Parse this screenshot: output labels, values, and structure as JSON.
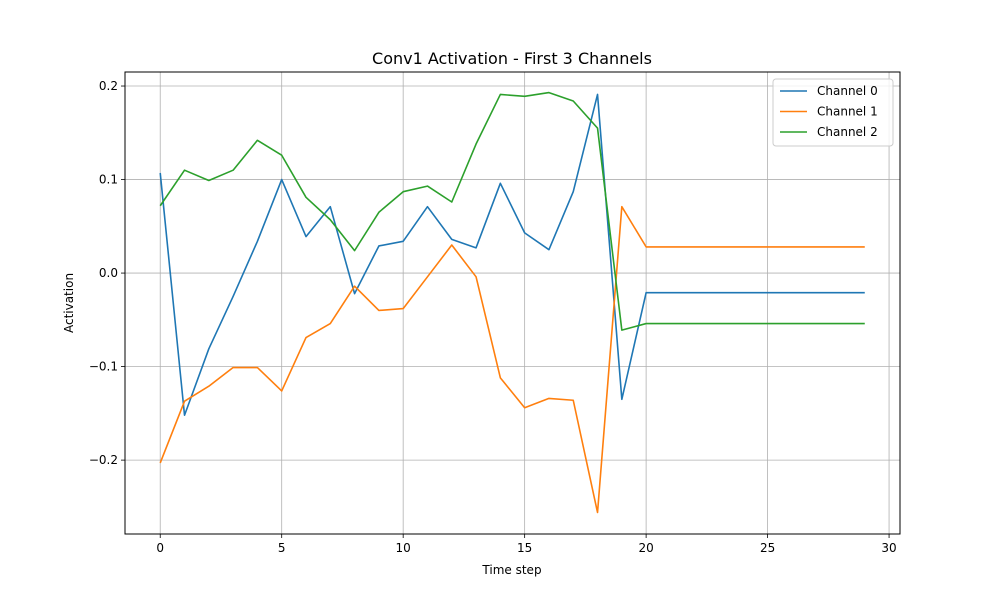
{
  "chart_data": {
    "type": "line",
    "title": "Conv1 Activation - First 3 Channels",
    "xlabel": "Time step",
    "ylabel": "Activation",
    "xlim": [
      -1.45,
      30.45
    ],
    "ylim": [
      -0.279,
      0.215
    ],
    "xticks": [
      0,
      5,
      10,
      15,
      20,
      25,
      30
    ],
    "xtick_labels": [
      "0",
      "5",
      "10",
      "15",
      "20",
      "25",
      "30"
    ],
    "yticks": [
      -0.2,
      -0.1,
      0.0,
      0.1,
      0.2
    ],
    "ytick_labels": [
      "−0.2",
      "−0.1",
      "0.0",
      "0.1",
      "0.2"
    ],
    "grid": true,
    "legend_position": "top-right",
    "x": [
      0,
      1,
      2,
      3,
      4,
      5,
      6,
      7,
      8,
      9,
      10,
      11,
      12,
      13,
      14,
      15,
      16,
      17,
      18,
      19,
      20,
      21,
      22,
      23,
      24,
      25,
      26,
      27,
      28,
      29
    ],
    "series": [
      {
        "name": "Channel 0",
        "color": "#1f77b4",
        "values": [
          0.107,
          -0.152,
          -0.081,
          -0.025,
          0.034,
          0.1,
          0.039,
          0.071,
          -0.022,
          0.029,
          0.034,
          0.071,
          0.036,
          0.027,
          0.096,
          0.043,
          0.025,
          0.087,
          0.191,
          -0.135,
          -0.021,
          -0.021,
          -0.021,
          -0.021,
          -0.021,
          -0.021,
          -0.021,
          -0.021,
          -0.021,
          -0.021
        ]
      },
      {
        "name": "Channel 1",
        "color": "#ff7f0e",
        "values": [
          -0.203,
          -0.137,
          -0.121,
          -0.101,
          -0.101,
          -0.126,
          -0.069,
          -0.054,
          -0.014,
          -0.04,
          -0.038,
          -0.004,
          0.03,
          -0.004,
          -0.112,
          -0.144,
          -0.134,
          -0.136,
          -0.256,
          0.071,
          0.028,
          0.028,
          0.028,
          0.028,
          0.028,
          0.028,
          0.028,
          0.028,
          0.028,
          0.028
        ]
      },
      {
        "name": "Channel 2",
        "color": "#2ca02c",
        "values": [
          0.072,
          0.11,
          0.099,
          0.11,
          0.142,
          0.126,
          0.081,
          0.057,
          0.024,
          0.065,
          0.087,
          0.093,
          0.076,
          0.138,
          0.191,
          0.189,
          0.193,
          0.184,
          0.155,
          -0.061,
          -0.054,
          -0.054,
          -0.054,
          -0.054,
          -0.054,
          -0.054,
          -0.054,
          -0.054,
          -0.054,
          -0.054
        ]
      }
    ]
  }
}
